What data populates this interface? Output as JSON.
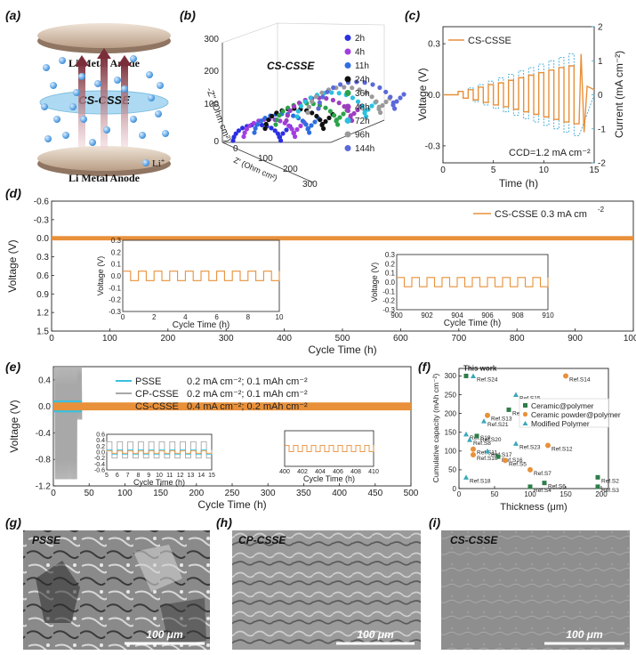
{
  "panel_labels": [
    "(a)",
    "(b)",
    "(c)",
    "(d)",
    "(e)",
    "(f)",
    "(g)",
    "(h)",
    "(i)"
  ],
  "panel_a": {
    "top_electrode": "Li Metal Anode",
    "bottom_electrode": "Li Metal Anode",
    "membrane": "CS-CSSE",
    "ion": "Li",
    "ion_sup": "+",
    "colors": {
      "ion": "#3c8ed8",
      "membrane": "#9fd3f0",
      "electrode": "#c9b29b",
      "arrow": "#7a2e3a"
    }
  },
  "panel_b": {
    "title": "CS-CSSE",
    "ylabel": "-Z'' (Ohm cm²)",
    "xlabel": "Z' (Ohm cm²)",
    "z_ticks": [
      "0",
      "100",
      "200",
      "300"
    ],
    "legend": [
      "2h",
      "4h",
      "11h",
      "24h",
      "36h",
      "48h",
      "72h",
      "96h",
      "144h"
    ],
    "colors": [
      "#2b2fe0",
      "#a23de0",
      "#2e6ee0",
      "#111111",
      "#2aa34a",
      "#9c3fbf",
      "#2bc0e0",
      "#9a9a9a",
      "#5a6ad8"
    ]
  },
  "panel_d": {
    "legend": "CS-CSSE 0.3 mA cm",
    "legend_sup": "-2",
    "inset1_ticks_x": [
      "0",
      "2",
      "4",
      "6",
      "8",
      "10"
    ],
    "inset2_ticks_x": [
      "900",
      "902",
      "904",
      "906",
      "908",
      "910"
    ],
    "inset_ticks_y": [
      "0.3",
      "0.2",
      "0.1",
      "0.0",
      "-0.1",
      "-0.2",
      "-0.3"
    ],
    "inset_xlabel": "Cycle Time (h)",
    "inset_ylabel": "Voltage (V)"
  },
  "panel_e": {
    "inset1_ticks_x": [
      "5",
      "6",
      "7",
      "8",
      "9",
      "10",
      "11",
      "12",
      "13",
      "14",
      "15"
    ],
    "inset1_ticks_y": [
      "0.6",
      "0.4",
      "0.2",
      "0.0",
      "-0.2",
      "-0.4",
      "-0.6"
    ],
    "inset2_ticks_x": [
      "400",
      "402",
      "404",
      "406",
      "408",
      "410"
    ],
    "inset_xlabel": "Cycle Time (h)"
  },
  "panel_f": {
    "this_work": "This work",
    "legend": [
      {
        "label": "Ceramic@polymer",
        "color": "#2e7d4a"
      },
      {
        "label": "Ceramic powder@polymer",
        "color": "#e8903a"
      },
      {
        "label": "Modified Polymer",
        "color": "#3aa8b8"
      }
    ]
  },
  "sem": [
    {
      "label": "PSSE",
      "scale": "100 μm"
    },
    {
      "label": "CP-CSSE",
      "scale": "100 μm"
    },
    {
      "label": "CS-CSSE",
      "scale": "100 μm"
    }
  ],
  "chart_data": [
    {
      "id": "c",
      "type": "line",
      "legend": "CS-CSSE",
      "xlabel": "Time (h)",
      "ylabel": "Voltage (V)",
      "y2label": "Current (mA cm⁻²)",
      "annotation": "CCD=1.2 mA cm⁻²",
      "xlim": [
        0,
        15
      ],
      "ylim": [
        -0.4,
        0.4
      ],
      "y2lim": [
        -2,
        2
      ],
      "x_ticks": [
        0,
        5,
        10,
        15
      ],
      "y_ticks": [
        0.3,
        0.0,
        -0.3
      ],
      "y2_ticks": [
        2,
        1,
        0,
        -1,
        -2
      ],
      "step_current": [
        0.1,
        0.2,
        0.3,
        0.4,
        0.5,
        0.6,
        0.7,
        0.8,
        0.9,
        1.0,
        1.1,
        1.2
      ],
      "step_voltage": [
        0.02,
        0.03,
        0.045,
        0.06,
        0.07,
        0.085,
        0.1,
        0.115,
        0.13,
        0.145,
        0.16,
        0.17
      ],
      "colors": {
        "voltage": "#e8903a",
        "current": "#3aa8d8"
      }
    },
    {
      "id": "d",
      "type": "line",
      "xlabel": "Cycle Time (h)",
      "ylabel": "Voltage (V)",
      "xlim": [
        0,
        1000
      ],
      "ylim": [
        -0.6,
        1.5
      ],
      "x_ticks": [
        0,
        100,
        200,
        300,
        400,
        500,
        600,
        700,
        800,
        900,
        1000
      ],
      "y_ticks": [
        -0.6,
        -0.3,
        0.0,
        0.3,
        0.6,
        0.9,
        1.2,
        1.5
      ],
      "band_amplitude": 0.035,
      "inset1": {
        "xlim": [
          0,
          10
        ],
        "ylim": [
          -0.3,
          0.3
        ],
        "amplitude": 0.04,
        "period_h": 1
      },
      "inset2": {
        "xlim": [
          900,
          910
        ],
        "ylim": [
          -0.3,
          0.3
        ],
        "amplitude": 0.05,
        "period_h": 1
      },
      "color": "#e8903a"
    },
    {
      "id": "e",
      "type": "line",
      "xlabel": "Cycle Time (h)",
      "ylabel": "Voltage (V)",
      "xlim": [
        0,
        500
      ],
      "ylim": [
        -1.2,
        0.6
      ],
      "x_ticks": [
        0,
        50,
        100,
        150,
        200,
        250,
        300,
        350,
        400,
        450,
        500
      ],
      "y_ticks": [
        0.4,
        0.0,
        -0.4,
        -0.8,
        -1.2
      ],
      "series": [
        {
          "name": "PSSE",
          "desc": "0.2 mA cm⁻²; 0.1 mAh cm⁻²",
          "color": "#3ac0e0",
          "end_h": 40,
          "amplitude": 0.09
        },
        {
          "name": "CP-CSSE",
          "desc": "0.2 mA cm⁻²; 0.1 mAh cm⁻²",
          "color": "#a8a8a8",
          "end_h": 40,
          "amplitude": 1.1
        },
        {
          "name": "CS-CSSE",
          "desc": "0.4 mA cm⁻²; 0.2 mAh cm⁻²",
          "color": "#e8903a",
          "end_h": 500,
          "amplitude": 0.06
        }
      ]
    },
    {
      "id": "f",
      "type": "scatter",
      "xlabel": "Thickness (μm)",
      "ylabel": "Cumulative capacity (mAh cm⁻²)",
      "xlim": [
        0,
        210
      ],
      "ylim": [
        0,
        320
      ],
      "x_ticks": [
        0,
        50,
        100,
        150,
        200
      ],
      "y_ticks": [
        0,
        50,
        100,
        150,
        200,
        250,
        300
      ],
      "points": [
        {
          "label": "This work",
          "x": 10,
          "y": 300,
          "group": "this"
        },
        {
          "label": "Ref.S24",
          "x": 20,
          "y": 300,
          "group": "modified"
        },
        {
          "label": "Ref.S14",
          "x": 150,
          "y": 300,
          "group": "powder"
        },
        {
          "label": "Ref.S15",
          "x": 80,
          "y": 250,
          "group": "modified"
        },
        {
          "label": "Ref.S22",
          "x": 70,
          "y": 210,
          "group": "ceramic"
        },
        {
          "label": "Ref.S13",
          "x": 40,
          "y": 195,
          "group": "powder"
        },
        {
          "label": "Ref.S21",
          "x": 35,
          "y": 180,
          "group": "modified"
        },
        {
          "label": "Ref.S19",
          "x": 10,
          "y": 145,
          "group": "modified"
        },
        {
          "label": "Ref.S20",
          "x": 25,
          "y": 140,
          "group": "ceramic"
        },
        {
          "label": "Ref.S8",
          "x": 15,
          "y": 130,
          "group": "modified"
        },
        {
          "label": "Ref.S23",
          "x": 80,
          "y": 120,
          "group": "modified"
        },
        {
          "label": "Ref.S12",
          "x": 125,
          "y": 115,
          "group": "powder"
        },
        {
          "label": "Ref.S11",
          "x": 20,
          "y": 105,
          "group": "powder"
        },
        {
          "label": "Ref.S17",
          "x": 40,
          "y": 100,
          "group": "modified"
        },
        {
          "label": "Ref.S10",
          "x": 20,
          "y": 90,
          "group": "powder"
        },
        {
          "label": "Ref.S16",
          "x": 55,
          "y": 85,
          "group": "ceramic"
        },
        {
          "label": "Ref.S5",
          "x": 65,
          "y": 75,
          "group": "powder"
        },
        {
          "label": "Ref.S7",
          "x": 100,
          "y": 50,
          "group": "powder"
        },
        {
          "label": "Ref.S18",
          "x": 10,
          "y": 30,
          "group": "modified"
        },
        {
          "label": "Ref.S2",
          "x": 195,
          "y": 30,
          "group": "ceramic"
        },
        {
          "label": "Ref.S4",
          "x": 100,
          "y": 5,
          "group": "ceramic"
        },
        {
          "label": "Ref.S6",
          "x": 120,
          "y": 15,
          "group": "ceramic"
        },
        {
          "label": "Ref.S3",
          "x": 195,
          "y": 5,
          "group": "ceramic"
        }
      ]
    }
  ]
}
